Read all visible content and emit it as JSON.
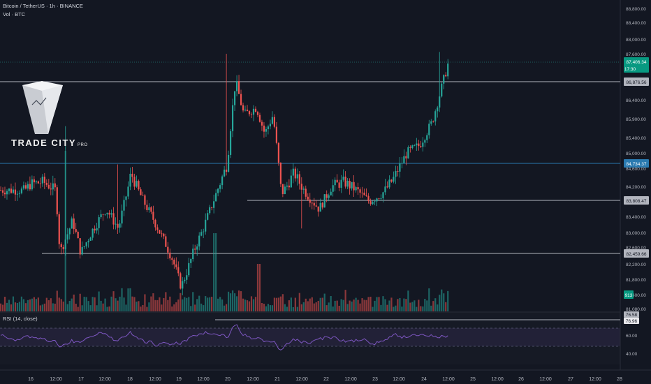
{
  "header": {
    "symbol_line": "Bitcoin / TetherUS · 1h · BINANCE",
    "volume_label": "Vol · BTC"
  },
  "logo": {
    "text": "TRADE CITY",
    "suffix": "PRO"
  },
  "rsi": {
    "title": "RSI (14, close)",
    "value_a": "76.58",
    "value_b": "76.96",
    "ticks": [
      "60.00",
      "40.00"
    ]
  },
  "price_axis": {
    "ticks": [
      "88,800.00",
      "88,400.00",
      "88,000.00",
      "87,600.00",
      "86,400.00",
      "85,900.00",
      "85,400.00",
      "85,000.00",
      "84,600.00",
      "84,200.00",
      "83,400.00",
      "83,000.00",
      "82,600.00",
      "82,200.00",
      "81,800.00",
      "81,400.00",
      "81,080.00"
    ],
    "current_price": "87,406.34",
    "countdown": "17:30",
    "volume_badge": "913"
  },
  "time_axis": {
    "ticks": [
      "16",
      "12:00",
      "17",
      "12:00",
      "18",
      "12:00",
      "19",
      "12:00",
      "20",
      "12:00",
      "21",
      "12:00",
      "22",
      "12:00",
      "23",
      "12:00",
      "24",
      "12:00",
      "25",
      "12:00",
      "26",
      "12:00",
      "27",
      "12:00",
      "28"
    ]
  },
  "levels": [
    {
      "label": "86,876.56",
      "color": "#b2b5be",
      "text_color": "#131722"
    },
    {
      "label": "84,734.37",
      "color": "#2a7ab0",
      "text_color": "#ffffff"
    },
    {
      "label": "83,808.47",
      "color": "#b2b5be",
      "text_color": "#131722"
    },
    {
      "label": "82,459.66",
      "color": "#b2b5be",
      "text_color": "#131722"
    }
  ],
  "colors": {
    "background": "#131722",
    "up": "#26a69a",
    "down": "#ef5350",
    "rsi_line": "#7e57c2",
    "rsi_band": "#2a2540",
    "grid": "#1e222d"
  },
  "chart_data": {
    "type": "candlestick",
    "title": "Bitcoin / TetherUS · 1h · BINANCE",
    "y_range": [
      81080,
      88800
    ],
    "x_range": [
      "16 00:00",
      "28 00:00"
    ],
    "x_unit": "hours",
    "horizontal_levels": [
      86876.56,
      84734.37,
      83808.47,
      82459.66
    ],
    "last_price": 87406.34,
    "last_volume": 913,
    "rsi_last": [
      76.58,
      76.96
    ],
    "price_path": [
      {
        "t": "15 21:00",
        "price": 84100
      },
      {
        "t": "16 00:00",
        "price": 84250
      },
      {
        "t": "16 06:00",
        "price": 84300
      },
      {
        "t": "16 12:00",
        "price": 84100
      },
      {
        "t": "16 14:00",
        "price": 82450
      },
      {
        "t": "16 20:00",
        "price": 83300
      },
      {
        "t": "16 22:00",
        "price": 82900
      },
      {
        "t": "17 00:00",
        "price": 82450
      },
      {
        "t": "17 06:00",
        "price": 83100
      },
      {
        "t": "17 12:00",
        "price": 83600
      },
      {
        "t": "17 18:00",
        "price": 83100
      },
      {
        "t": "18 00:00",
        "price": 84500
      },
      {
        "t": "18 06:00",
        "price": 83800
      },
      {
        "t": "18 12:00",
        "price": 83200
      },
      {
        "t": "18 20:00",
        "price": 82300
      },
      {
        "t": "19 00:00",
        "price": 81600
      },
      {
        "t": "19 06:00",
        "price": 82500
      },
      {
        "t": "19 12:00",
        "price": 83300
      },
      {
        "t": "19 18:00",
        "price": 84200
      },
      {
        "t": "19 22:00",
        "price": 84700
      },
      {
        "t": "20 00:00",
        "price": 85900
      },
      {
        "t": "20 02:00",
        "price": 86900
      },
      {
        "t": "20 06:00",
        "price": 86000
      },
      {
        "t": "20 12:00",
        "price": 86200
      },
      {
        "t": "20 16:00",
        "price": 85500
      },
      {
        "t": "20 20:00",
        "price": 86000
      },
      {
        "t": "21 00:00",
        "price": 84000
      },
      {
        "t": "21 06:00",
        "price": 84500
      },
      {
        "t": "21 12:00",
        "price": 84000
      },
      {
        "t": "21 18:00",
        "price": 83600
      },
      {
        "t": "22 00:00",
        "price": 84200
      },
      {
        "t": "22 06:00",
        "price": 84300
      },
      {
        "t": "22 12:00",
        "price": 84100
      },
      {
        "t": "22 18:00",
        "price": 83800
      },
      {
        "t": "23 00:00",
        "price": 84000
      },
      {
        "t": "23 06:00",
        "price": 84400
      },
      {
        "t": "23 12:00",
        "price": 85000
      },
      {
        "t": "23 18:00",
        "price": 85200
      },
      {
        "t": "24 00:00",
        "price": 85800
      },
      {
        "t": "24 04:00",
        "price": 86600
      },
      {
        "t": "24 08:00",
        "price": 87400
      }
    ],
    "xlabel": "",
    "ylabel": ""
  }
}
